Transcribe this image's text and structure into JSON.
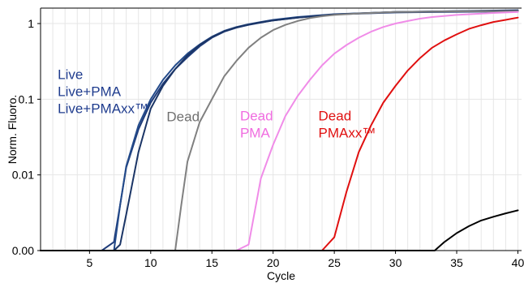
{
  "chart_data": {
    "type": "line",
    "xlabel": "Cycle",
    "ylabel": "Norm. Fluoro.",
    "xlim": [
      1,
      40.3
    ],
    "y_scale": "log",
    "ylim": [
      0.001,
      1.6
    ],
    "grid": true,
    "x_ticks": [
      {
        "value": 5,
        "label": "5"
      },
      {
        "value": 10,
        "label": "10"
      },
      {
        "value": 15,
        "label": "15"
      },
      {
        "value": 20,
        "label": "20"
      },
      {
        "value": 25,
        "label": "25"
      },
      {
        "value": 30,
        "label": "30"
      },
      {
        "value": 35,
        "label": "35"
      },
      {
        "value": 40,
        "label": "40"
      }
    ],
    "y_ticks": [
      {
        "value": 0.001,
        "label": "0.00"
      },
      {
        "value": 0.01,
        "label": "0.01"
      },
      {
        "value": 0.1,
        "label": "0.1"
      },
      {
        "value": 1,
        "label": "1"
      }
    ],
    "series": [
      {
        "color": "#1f3c7a",
        "x": [
          1,
          6,
          7,
          7.5,
          8,
          9,
          10,
          11,
          12,
          13,
          14,
          15,
          16,
          17,
          18,
          19,
          20,
          22,
          25,
          30,
          35,
          40
        ],
        "y": [
          0.001,
          0.001,
          0.0013,
          0.004,
          0.0125,
          0.04,
          0.09,
          0.16,
          0.25,
          0.36,
          0.5,
          0.65,
          0.78,
          0.88,
          0.96,
          1.03,
          1.1,
          1.2,
          1.32,
          1.4,
          1.43,
          1.45
        ]
      },
      {
        "color": "#234a8a",
        "x": [
          1,
          7,
          7.5,
          8,
          9,
          10,
          11,
          12,
          13,
          14,
          15,
          16,
          17,
          18,
          19,
          20,
          22,
          25,
          30,
          35,
          40
        ],
        "y": [
          0.001,
          0.001,
          0.004,
          0.013,
          0.045,
          0.1,
          0.18,
          0.28,
          0.4,
          0.53,
          0.67,
          0.8,
          0.9,
          0.98,
          1.05,
          1.12,
          1.22,
          1.33,
          1.42,
          1.46,
          1.48
        ]
      },
      {
        "color": "#1b3566",
        "x": [
          1,
          7,
          7.5,
          8,
          9,
          10,
          11,
          12,
          13,
          14,
          15,
          16,
          17,
          18,
          19,
          20,
          22,
          25,
          30,
          35,
          40
        ],
        "y": [
          0.001,
          0.001,
          0.0012,
          0.003,
          0.02,
          0.075,
          0.15,
          0.25,
          0.38,
          0.52,
          0.66,
          0.79,
          0.89,
          0.97,
          1.04,
          1.1,
          1.2,
          1.32,
          1.42,
          1.46,
          1.5
        ]
      },
      {
        "color": "#808080",
        "x": [
          1,
          12,
          12.5,
          13,
          14,
          15,
          16,
          17,
          18,
          19,
          20,
          21,
          22,
          23,
          24,
          25,
          27,
          30,
          35,
          40
        ],
        "y": [
          0.001,
          0.001,
          0.004,
          0.015,
          0.05,
          0.1,
          0.2,
          0.32,
          0.48,
          0.65,
          0.82,
          0.96,
          1.08,
          1.18,
          1.25,
          1.3,
          1.36,
          1.42,
          1.45,
          1.46
        ]
      },
      {
        "color": "#f08ce8",
        "x": [
          1,
          17,
          18,
          19,
          20,
          21,
          22,
          23,
          24,
          25,
          26,
          27,
          28,
          29,
          30,
          31,
          32,
          33,
          35,
          38,
          40
        ],
        "y": [
          0.001,
          0.001,
          0.0012,
          0.009,
          0.025,
          0.06,
          0.11,
          0.18,
          0.28,
          0.4,
          0.52,
          0.65,
          0.78,
          0.9,
          1.0,
          1.08,
          1.16,
          1.22,
          1.3,
          1.38,
          1.42
        ]
      },
      {
        "color": "#e01010",
        "x": [
          1,
          24,
          25,
          26,
          27,
          28,
          29,
          30,
          31,
          32,
          33,
          34,
          35,
          36,
          37,
          38,
          39,
          40
        ],
        "y": [
          0.001,
          0.001,
          0.0015,
          0.006,
          0.02,
          0.045,
          0.09,
          0.15,
          0.24,
          0.35,
          0.48,
          0.6,
          0.72,
          0.85,
          0.95,
          1.05,
          1.12,
          1.2
        ]
      },
      {
        "color": "#000000",
        "x": [
          1,
          33.2,
          34,
          35,
          36,
          37,
          38,
          39,
          40
        ],
        "y": [
          0.001,
          0.001,
          0.0013,
          0.0017,
          0.0021,
          0.0025,
          0.0028,
          0.0031,
          0.0034
        ]
      }
    ],
    "annotations": [
      {
        "lines": [
          "Live",
          "Live+PMA",
          "Live+PMAxx™"
        ],
        "color": "#1f3c8e",
        "x": 2.4,
        "y": 0.185
      },
      {
        "lines": [
          "Dead"
        ],
        "color": "#707070",
        "x": 11.3,
        "y": 0.051
      },
      {
        "lines": [
          "Dead",
          "PMA"
        ],
        "color": "#f06ce0",
        "x": 17.3,
        "y": 0.0525
      },
      {
        "lines": [
          "Dead",
          "PMAxx™"
        ],
        "color": "#e01010",
        "x": 23.7,
        "y": 0.0525
      }
    ]
  }
}
